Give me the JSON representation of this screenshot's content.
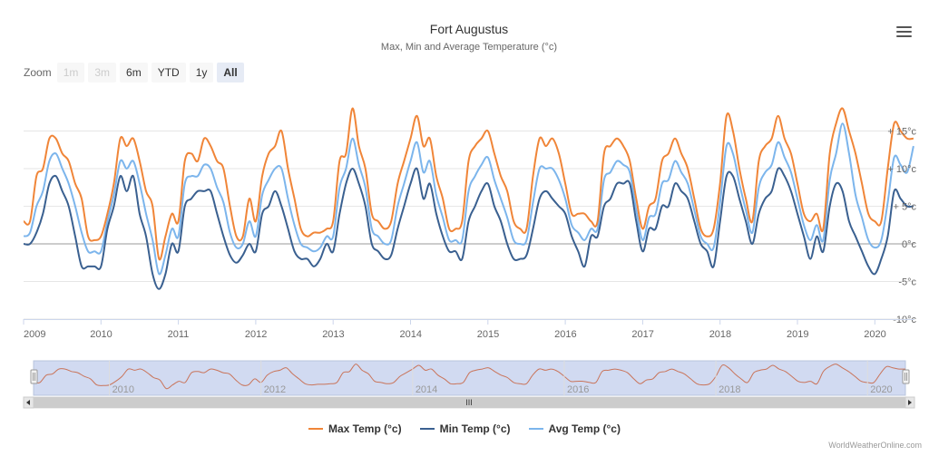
{
  "chart_data": {
    "type": "line",
    "title": "Fort Augustus",
    "subtitle": "Max, Min and Average Temperature (°c)",
    "y_ticks": [
      15,
      10,
      5,
      0,
      -5,
      -10
    ],
    "y_tick_labels": [
      "+ 15°c",
      "+ 10°c",
      "+ 5°c",
      "0°c",
      "-5°c",
      "-10°c"
    ],
    "ylim": [
      -10,
      17
    ],
    "x_ticks": [
      2009,
      2010,
      2011,
      2012,
      2013,
      2014,
      2015,
      2016,
      2017,
      2018,
      2019,
      2020
    ],
    "x_tick_labels": [
      "2009",
      "2010",
      "2011",
      "2012",
      "2013",
      "2014",
      "2015",
      "2016",
      "2017",
      "2018",
      "2019",
      "2020"
    ],
    "xlim": [
      2009.0,
      2020.5
    ],
    "grid": true,
    "legend_position": "bottom",
    "x": [
      2009.0,
      2009.083,
      2009.167,
      2009.25,
      2009.333,
      2009.417,
      2009.5,
      2009.583,
      2009.667,
      2009.75,
      2009.833,
      2009.917,
      2010.0,
      2010.083,
      2010.167,
      2010.25,
      2010.333,
      2010.417,
      2010.5,
      2010.583,
      2010.667,
      2010.75,
      2010.833,
      2010.917,
      2011.0,
      2011.083,
      2011.167,
      2011.25,
      2011.333,
      2011.417,
      2011.5,
      2011.583,
      2011.667,
      2011.75,
      2011.833,
      2011.917,
      2012.0,
      2012.083,
      2012.167,
      2012.25,
      2012.333,
      2012.417,
      2012.5,
      2012.583,
      2012.667,
      2012.75,
      2012.833,
      2012.917,
      2013.0,
      2013.083,
      2013.167,
      2013.25,
      2013.333,
      2013.417,
      2013.5,
      2013.583,
      2013.667,
      2013.75,
      2013.833,
      2013.917,
      2014.0,
      2014.083,
      2014.167,
      2014.25,
      2014.333,
      2014.417,
      2014.5,
      2014.583,
      2014.667,
      2014.75,
      2014.833,
      2014.917,
      2015.0,
      2015.083,
      2015.167,
      2015.25,
      2015.333,
      2015.417,
      2015.5,
      2015.583,
      2015.667,
      2015.75,
      2015.833,
      2015.917,
      2016.0,
      2016.083,
      2016.167,
      2016.25,
      2016.333,
      2016.417,
      2016.5,
      2016.583,
      2016.667,
      2016.75,
      2016.833,
      2016.917,
      2017.0,
      2017.083,
      2017.167,
      2017.25,
      2017.333,
      2017.417,
      2017.5,
      2017.583,
      2017.667,
      2017.75,
      2017.833,
      2017.917,
      2018.0,
      2018.083,
      2018.167,
      2018.25,
      2018.333,
      2018.417,
      2018.5,
      2018.583,
      2018.667,
      2018.75,
      2018.833,
      2018.917,
      2019.0,
      2019.083,
      2019.167,
      2019.25,
      2019.333,
      2019.417,
      2019.5,
      2019.583,
      2019.667,
      2019.75,
      2019.833,
      2019.917,
      2020.0,
      2020.083,
      2020.167,
      2020.25,
      2020.333,
      2020.417,
      2020.5
    ],
    "series": [
      {
        "name": "Max Temp (°c)",
        "color": "#f08538",
        "values": [
          3,
          3,
          9,
          10,
          14,
          14,
          12,
          11,
          8,
          6,
          1,
          0.5,
          1,
          4,
          8,
          14,
          13,
          14,
          11,
          7,
          5,
          -2,
          1,
          4,
          3,
          11,
          12,
          11,
          14,
          13,
          11,
          10,
          5,
          1,
          1,
          6,
          3,
          9,
          12,
          13,
          15,
          10,
          6,
          2,
          1,
          1.5,
          1.5,
          2,
          3,
          11,
          12,
          18,
          13,
          10,
          4,
          3,
          2,
          3,
          8,
          11,
          14,
          17,
          13,
          14,
          9,
          6,
          2,
          2,
          3,
          11,
          13,
          14,
          15,
          12,
          9,
          7,
          3,
          2,
          2,
          9,
          14,
          13,
          14,
          12,
          8,
          4,
          4,
          4,
          3,
          3,
          12,
          13,
          14,
          13,
          11,
          6,
          2,
          5,
          6,
          11,
          12,
          14,
          12,
          10,
          6,
          2,
          1,
          2,
          8,
          17,
          15,
          10,
          6,
          3,
          11,
          13,
          14,
          17,
          14,
          12,
          8,
          4,
          3,
          4,
          2,
          12,
          16,
          18,
          15,
          12,
          8,
          4,
          3,
          3,
          10,
          16,
          15,
          14,
          14
        ]
      },
      {
        "name": "Min Temp (°c)",
        "color": "#3a6090",
        "values": [
          0,
          0,
          1.5,
          4,
          8,
          9,
          7,
          5,
          1,
          -3,
          -3,
          -3,
          -3,
          2,
          5,
          9,
          7,
          9,
          4,
          1,
          -4,
          -6,
          -4,
          0,
          -1,
          5,
          6,
          7,
          7,
          7,
          4,
          1,
          -1.5,
          -2.5,
          -1.5,
          0,
          -1,
          4,
          5,
          7,
          5,
          2,
          -1,
          -2,
          -2,
          -3,
          -2,
          0,
          -1,
          4,
          8,
          10,
          8,
          5,
          0,
          -1,
          -2,
          -1.5,
          2,
          5,
          8,
          10,
          6,
          8,
          4,
          1,
          -1,
          -1,
          -2,
          3,
          5,
          7,
          8,
          5,
          3,
          0,
          -2,
          -2,
          -1.5,
          2,
          6,
          7,
          6,
          5,
          4,
          1,
          -1,
          -3,
          1,
          1,
          5,
          6,
          8,
          8,
          8,
          3,
          -1,
          2,
          2,
          5,
          5,
          8,
          7,
          6,
          3,
          0,
          -1,
          -3,
          3,
          9,
          9,
          6,
          3,
          0,
          4,
          6,
          7,
          10,
          9,
          7,
          4,
          1,
          -2,
          1,
          -1,
          5,
          8,
          7,
          3,
          1,
          -1,
          -3,
          -4,
          -2,
          1,
          7,
          6,
          5,
          5
        ]
      },
      {
        "name": "Avg Temp (°c)",
        "color": "#7cb5ec",
        "values": [
          1,
          1.5,
          5,
          7,
          11,
          12,
          10,
          8,
          5,
          1.5,
          -1,
          -1,
          -1,
          3,
          6.5,
          11,
          10,
          11,
          8,
          4,
          0.5,
          -4,
          -1.5,
          2,
          1,
          8,
          9,
          9,
          10.5,
          10,
          7.5,
          5.5,
          1.5,
          -0.5,
          0,
          3,
          1,
          6.5,
          8.5,
          10,
          10,
          6,
          2.5,
          0,
          -0.5,
          -1,
          -0.5,
          1,
          1,
          7.5,
          10,
          14,
          10.5,
          7.5,
          2,
          1,
          0,
          0.5,
          5,
          8,
          11,
          13.5,
          9.5,
          11,
          6.5,
          3.5,
          0.5,
          0.5,
          0.5,
          7,
          9,
          10.5,
          11.5,
          8.5,
          6,
          3.5,
          0.5,
          0,
          0.5,
          5.5,
          10,
          10,
          10,
          8.5,
          6,
          2.5,
          1.5,
          0.5,
          2,
          2,
          8.5,
          9.5,
          11,
          10.5,
          9.5,
          4.5,
          0.5,
          3.5,
          4,
          8,
          8.5,
          11,
          9.5,
          8,
          4.5,
          1,
          0,
          -0.5,
          5.5,
          13,
          12,
          8,
          4.5,
          1.5,
          7.5,
          9.5,
          10.5,
          13.5,
          11.5,
          9.5,
          6,
          2.5,
          0.5,
          2.5,
          0.5,
          8.5,
          12,
          16,
          12,
          6.5,
          3.5,
          0.5,
          -0.5,
          0.5,
          5.5,
          11.5,
          10.5,
          9.5,
          13
        ]
      }
    ]
  },
  "navigator": {
    "labels": [
      "2010",
      "2012",
      "2014",
      "2016",
      "2018",
      "2020"
    ],
    "scroll_grip": "III"
  },
  "zoom": {
    "label": "Zoom",
    "buttons": [
      {
        "label": "1m",
        "state": "disabled"
      },
      {
        "label": "3m",
        "state": "disabled"
      },
      {
        "label": "6m",
        "state": "normal"
      },
      {
        "label": "YTD",
        "state": "normal"
      },
      {
        "label": "1y",
        "state": "normal"
      },
      {
        "label": "All",
        "state": "active"
      }
    ]
  },
  "legend": [
    {
      "label": "Max Temp (°c)",
      "color": "#f08538"
    },
    {
      "label": "Min Temp (°c)",
      "color": "#3a6090"
    },
    {
      "label": "Avg Temp (°c)",
      "color": "#7cb5ec"
    }
  ],
  "credit": "WorldWeatherOnline.com",
  "menu": {
    "icon": "hamburger-menu-icon"
  }
}
